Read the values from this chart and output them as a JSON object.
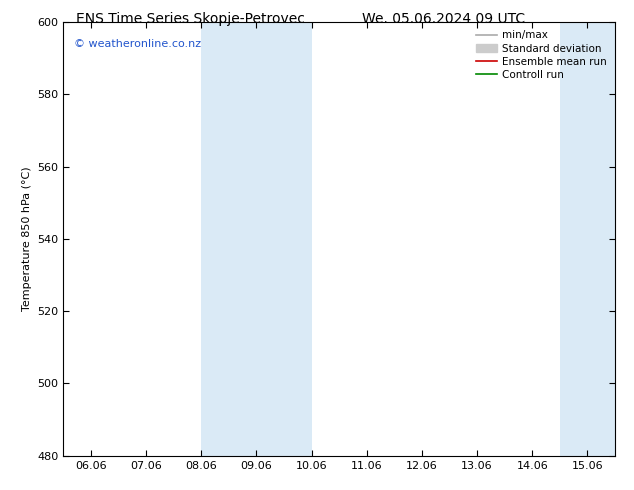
{
  "title_left": "ENS Time Series Skopje-Petrovec",
  "title_right": "We. 05.06.2024 09 UTC",
  "ylabel": "Temperature 850 hPa (°C)",
  "ylim": [
    480,
    600
  ],
  "yticks": [
    480,
    500,
    520,
    540,
    560,
    580,
    600
  ],
  "xtick_labels": [
    "06.06",
    "07.06",
    "08.06",
    "09.06",
    "10.06",
    "11.06",
    "12.06",
    "13.06",
    "14.06",
    "15.06"
  ],
  "xtick_positions": [
    0,
    1,
    2,
    3,
    4,
    5,
    6,
    7,
    8,
    9
  ],
  "xlim": [
    -0.5,
    9.5
  ],
  "shaded_bands": [
    {
      "xmin": 2.0,
      "xmax": 4.0
    },
    {
      "xmin": 8.5,
      "xmax": 9.5
    }
  ],
  "band_color": "#daeaf6",
  "watermark": "© weatheronline.co.nz",
  "watermark_color": "#2255cc",
  "bg_color": "#ffffff",
  "legend_entries": [
    {
      "label": "min/max",
      "color": "#aaaaaa",
      "lw": 1.2,
      "type": "line"
    },
    {
      "label": "Standard deviation",
      "color": "#cccccc",
      "lw": 5,
      "type": "rect"
    },
    {
      "label": "Ensemble mean run",
      "color": "#cc0000",
      "lw": 1.2,
      "type": "line"
    },
    {
      "label": "Controll run",
      "color": "#008800",
      "lw": 1.2,
      "type": "line"
    }
  ],
  "title_fontsize": 10,
  "axis_label_fontsize": 8,
  "tick_fontsize": 8,
  "legend_fontsize": 7.5,
  "watermark_fontsize": 8
}
